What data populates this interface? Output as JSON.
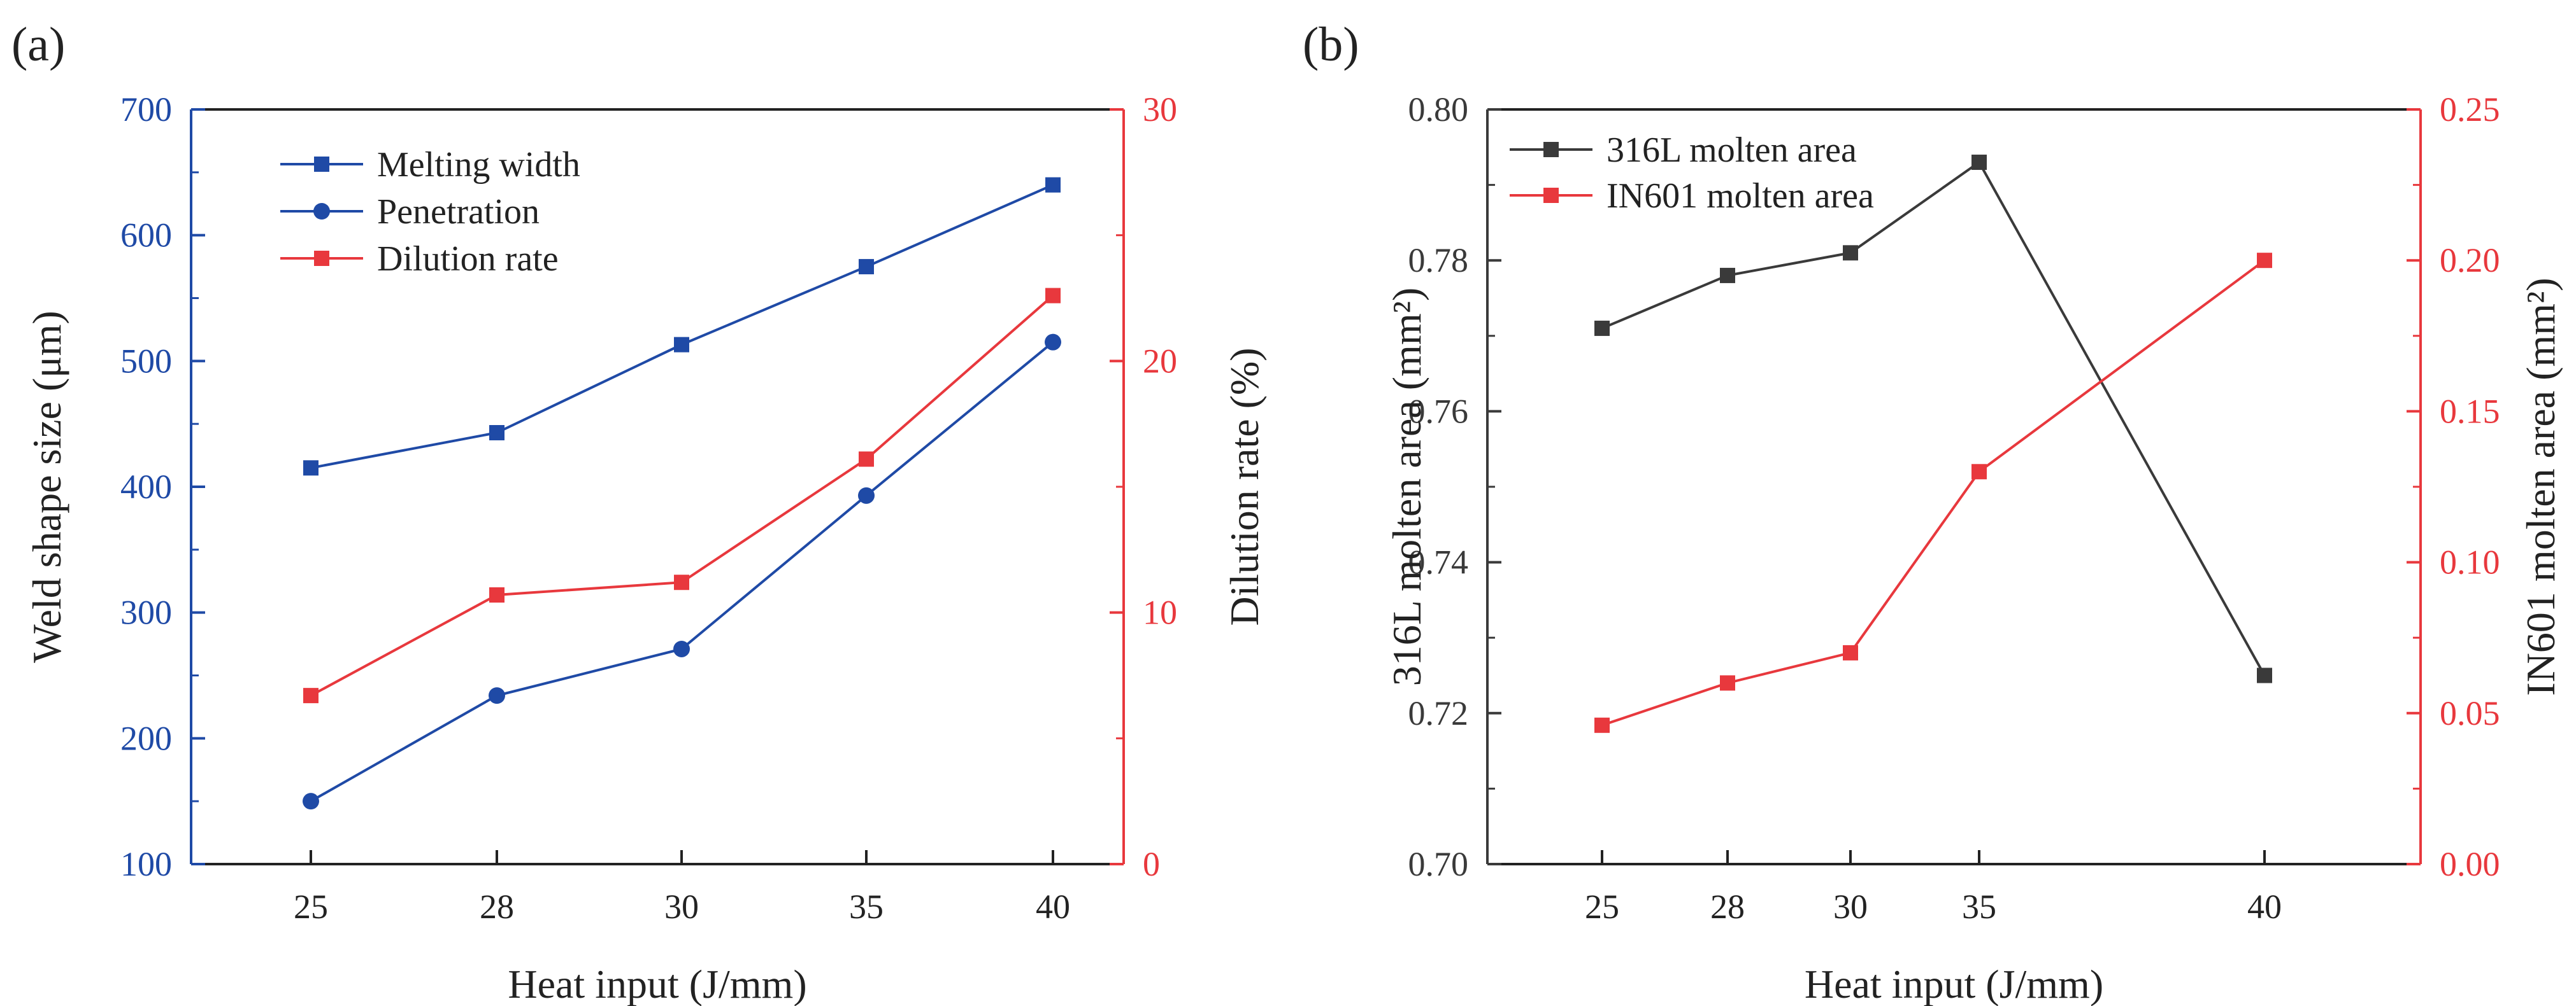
{
  "colors": {
    "blue": "#1f4aa6",
    "red": "#e8383d",
    "black": "#3a3a3a"
  },
  "chart_data": [
    {
      "type": "line",
      "panel_label": "(a)",
      "xlabel": "Heat input (J/mm)",
      "categories": [
        "25",
        "28",
        "30",
        "35",
        "40"
      ],
      "ylabel_left": "Weld shape size (μm)",
      "ylim_left": [
        100,
        700
      ],
      "yticks_left": [
        "100",
        "200",
        "300",
        "400",
        "500",
        "600",
        "700"
      ],
      "ylabel_right": "Dilution rate (%)",
      "ylim_right": [
        0,
        30
      ],
      "yticks_right": [
        "0",
        "10",
        "20",
        "30"
      ],
      "legend_position": "top-left",
      "series": [
        {
          "name": "Melting width",
          "axis": "left",
          "marker": "square",
          "color": "#1f4aa6",
          "values": [
            415,
            443,
            513,
            575,
            640
          ]
        },
        {
          "name": "Penetration",
          "axis": "left",
          "marker": "circle",
          "color": "#1f4aa6",
          "values": [
            150,
            234,
            271,
            393,
            515
          ]
        },
        {
          "name": "Dilution rate",
          "axis": "right",
          "marker": "square",
          "color": "#e8383d",
          "values": [
            6.7,
            10.7,
            11.2,
            16.1,
            22.6
          ]
        }
      ]
    },
    {
      "type": "line",
      "panel_label": "(b)",
      "xlabel": "Heat input (J/mm)",
      "categories": [
        "25",
        "28",
        "30",
        "35",
        "40"
      ],
      "ylabel_left": "316L molten area (mm²)",
      "ylim_left": [
        0.7,
        0.8
      ],
      "yticks_left": [
        "0.70",
        "0.72",
        "0.74",
        "0.76",
        "0.78",
        "0.80"
      ],
      "ylabel_right": "IN601 molten area (mm²)",
      "ylim_right": [
        0.0,
        0.25
      ],
      "yticks_right": [
        "0.00",
        "0.05",
        "0.10",
        "0.15",
        "0.20",
        "0.25"
      ],
      "legend_position": "top-left",
      "series": [
        {
          "name": "316L molten area",
          "axis": "left",
          "marker": "square",
          "color": "#3a3a3a",
          "values": [
            0.771,
            0.778,
            0.781,
            0.793,
            0.725
          ]
        },
        {
          "name": "IN601 molten area",
          "axis": "right",
          "marker": "square",
          "color": "#e8383d",
          "values": [
            0.046,
            0.06,
            0.07,
            0.13,
            0.2
          ]
        }
      ]
    }
  ]
}
